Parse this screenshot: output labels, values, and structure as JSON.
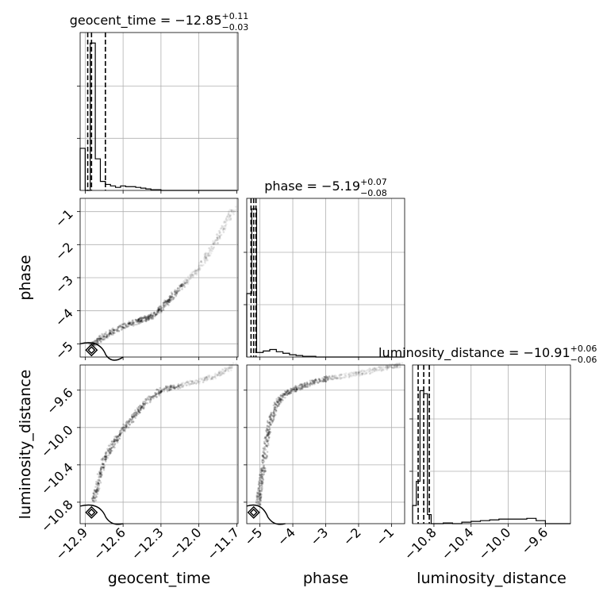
{
  "chart_data": {
    "type": "scatter",
    "plot_style": "corner",
    "parameters": [
      {
        "key": "geocent_time",
        "label": "geocent_time",
        "title": {
          "prefix": "geocent_time = ",
          "median": "−12.85",
          "plus": "+0.11",
          "minus": "−0.03"
        },
        "range": [
          -12.94,
          -11.69
        ],
        "ticks": [
          -12.9,
          -12.6,
          -12.3,
          -12.0,
          -11.7
        ],
        "tick_labels": [
          "−12.9",
          "−12.6",
          "−12.3",
          "−12.0",
          "−11.7"
        ],
        "quantiles": [
          -12.88,
          -12.85,
          -12.74
        ],
        "hist": {
          "edges": [
            -12.94,
            -12.9,
            -12.86,
            -12.82,
            -12.78,
            -12.74,
            -12.7,
            -12.66,
            -12.62,
            -12.58,
            -12.54,
            -12.5,
            -12.46,
            -12.42,
            -12.38,
            -12.34,
            -12.3,
            -12.26,
            -12.22,
            -12.18,
            -12.14,
            -12.1,
            -12.06,
            -12.02,
            -11.98,
            -11.94,
            -11.9,
            -11.86,
            -11.82,
            -11.78,
            -11.74,
            -11.7
          ],
          "counts": [
            0.28,
            0.0,
            0.98,
            0.21,
            0.06,
            0.04,
            0.03,
            0.02,
            0.03,
            0.025,
            0.025,
            0.02,
            0.015,
            0.01,
            0.005,
            0.005,
            0.0,
            0.0,
            0.0,
            0.0,
            0.0,
            0.0,
            0.0,
            0.0,
            0.0,
            0.0,
            0.0,
            0.0,
            0.0,
            0.0,
            0.0
          ]
        }
      },
      {
        "key": "phase",
        "label": "phase",
        "title": {
          "prefix": "phase = ",
          "median": "−5.19",
          "plus": "+0.07",
          "minus": "−0.08"
        },
        "range": [
          -5.4,
          -0.6
        ],
        "ticks": [
          -5,
          -4,
          -3,
          -2,
          -1
        ],
        "tick_labels": [
          "−5",
          "−4",
          "−3",
          "−2",
          "−1"
        ],
        "quantiles": [
          -5.27,
          -5.19,
          -5.12
        ],
        "hist": {
          "edges": [
            -5.4,
            -5.25,
            -5.1,
            -4.9,
            -4.7,
            -4.5,
            -4.3,
            -4.1,
            -3.9,
            -3.7,
            -3.5,
            -3.3,
            -3.1,
            -2.9,
            -2.7,
            -2.5,
            -2.3,
            -2.1,
            -1.9,
            -1.7,
            -1.5,
            -1.3,
            -1.1,
            -0.9,
            -0.6
          ],
          "counts": [
            0.42,
            0.98,
            0.03,
            0.04,
            0.05,
            0.035,
            0.025,
            0.015,
            0.01,
            0.005,
            0.005,
            0.0,
            0.0,
            0.0,
            0.0,
            0.0,
            0.0,
            0.0,
            0.0,
            0.0,
            0.0,
            0.0,
            0.0,
            0.0
          ]
        }
      },
      {
        "key": "luminosity_distance",
        "label": "luminosity_distance",
        "title": {
          "prefix": "luminosity_distance = ",
          "median": "−10.91",
          "plus": "+0.06",
          "minus": "−0.06"
        },
        "range": [
          -11.03,
          -9.33
        ],
        "ticks": [
          -10.8,
          -10.4,
          -10.0,
          -9.6
        ],
        "tick_labels": [
          "−10.8",
          "−10.4",
          "−10.0",
          "−9.6"
        ],
        "left_ticks": [
          -10.8,
          -10.4,
          -10.0,
          -9.6
        ],
        "quantiles": [
          -10.97,
          -10.91,
          -10.85
        ],
        "hist": {
          "edges": [
            -11.03,
            -10.99,
            -10.95,
            -10.91,
            -10.87,
            -10.83,
            -10.79,
            -10.7,
            -10.6,
            -10.5,
            -10.4,
            -10.3,
            -10.2,
            -10.1,
            -10.0,
            -9.9,
            -9.8,
            -9.7,
            -9.6,
            -9.5,
            -9.4,
            -9.33
          ],
          "counts": [
            0.12,
            0.28,
            0.88,
            0.86,
            0.06,
            0.0,
            0.0,
            0.005,
            0.0,
            0.01,
            0.015,
            0.02,
            0.025,
            0.03,
            0.03,
            0.03,
            0.035,
            0.02,
            0.0,
            0.0,
            0.0
          ]
        }
      }
    ],
    "hist_ymax": 1.05,
    "scatter_paths": {
      "phase_vs_geocent_time": [
        [
          -12.86,
          -5.05
        ],
        [
          -12.78,
          -4.85
        ],
        [
          -12.68,
          -4.62
        ],
        [
          -12.55,
          -4.4
        ],
        [
          -12.45,
          -4.28
        ],
        [
          -12.38,
          -4.18
        ],
        [
          -12.3,
          -3.95
        ],
        [
          -12.22,
          -3.6
        ],
        [
          -12.12,
          -3.2
        ],
        [
          -12.02,
          -2.8
        ],
        [
          -11.92,
          -2.25
        ],
        [
          -11.82,
          -1.6
        ],
        [
          -11.72,
          -0.88
        ]
      ],
      "luminosity_distance_vs_geocent_time": [
        [
          -12.83,
          -10.78
        ],
        [
          -12.8,
          -10.6
        ],
        [
          -12.75,
          -10.35
        ],
        [
          -12.68,
          -10.18
        ],
        [
          -12.6,
          -10.02
        ],
        [
          -12.5,
          -9.86
        ],
        [
          -12.42,
          -9.73
        ],
        [
          -12.3,
          -9.6
        ],
        [
          -12.15,
          -9.55
        ],
        [
          -12.0,
          -9.5
        ],
        [
          -11.85,
          -9.44
        ],
        [
          -11.72,
          -9.33
        ]
      ],
      "luminosity_distance_vs_phase": [
        [
          -5.05,
          -10.82
        ],
        [
          -5.0,
          -10.65
        ],
        [
          -4.9,
          -10.45
        ],
        [
          -4.8,
          -10.15
        ],
        [
          -4.7,
          -9.95
        ],
        [
          -4.5,
          -9.75
        ],
        [
          -4.25,
          -9.64
        ],
        [
          -3.9,
          -9.58
        ],
        [
          -3.4,
          -9.52
        ],
        [
          -2.9,
          -9.47
        ],
        [
          -2.3,
          -9.44
        ],
        [
          -1.7,
          -9.4
        ],
        [
          -1.1,
          -9.35
        ],
        [
          -0.7,
          -9.33
        ]
      ]
    },
    "grid": true,
    "legend": "none"
  }
}
